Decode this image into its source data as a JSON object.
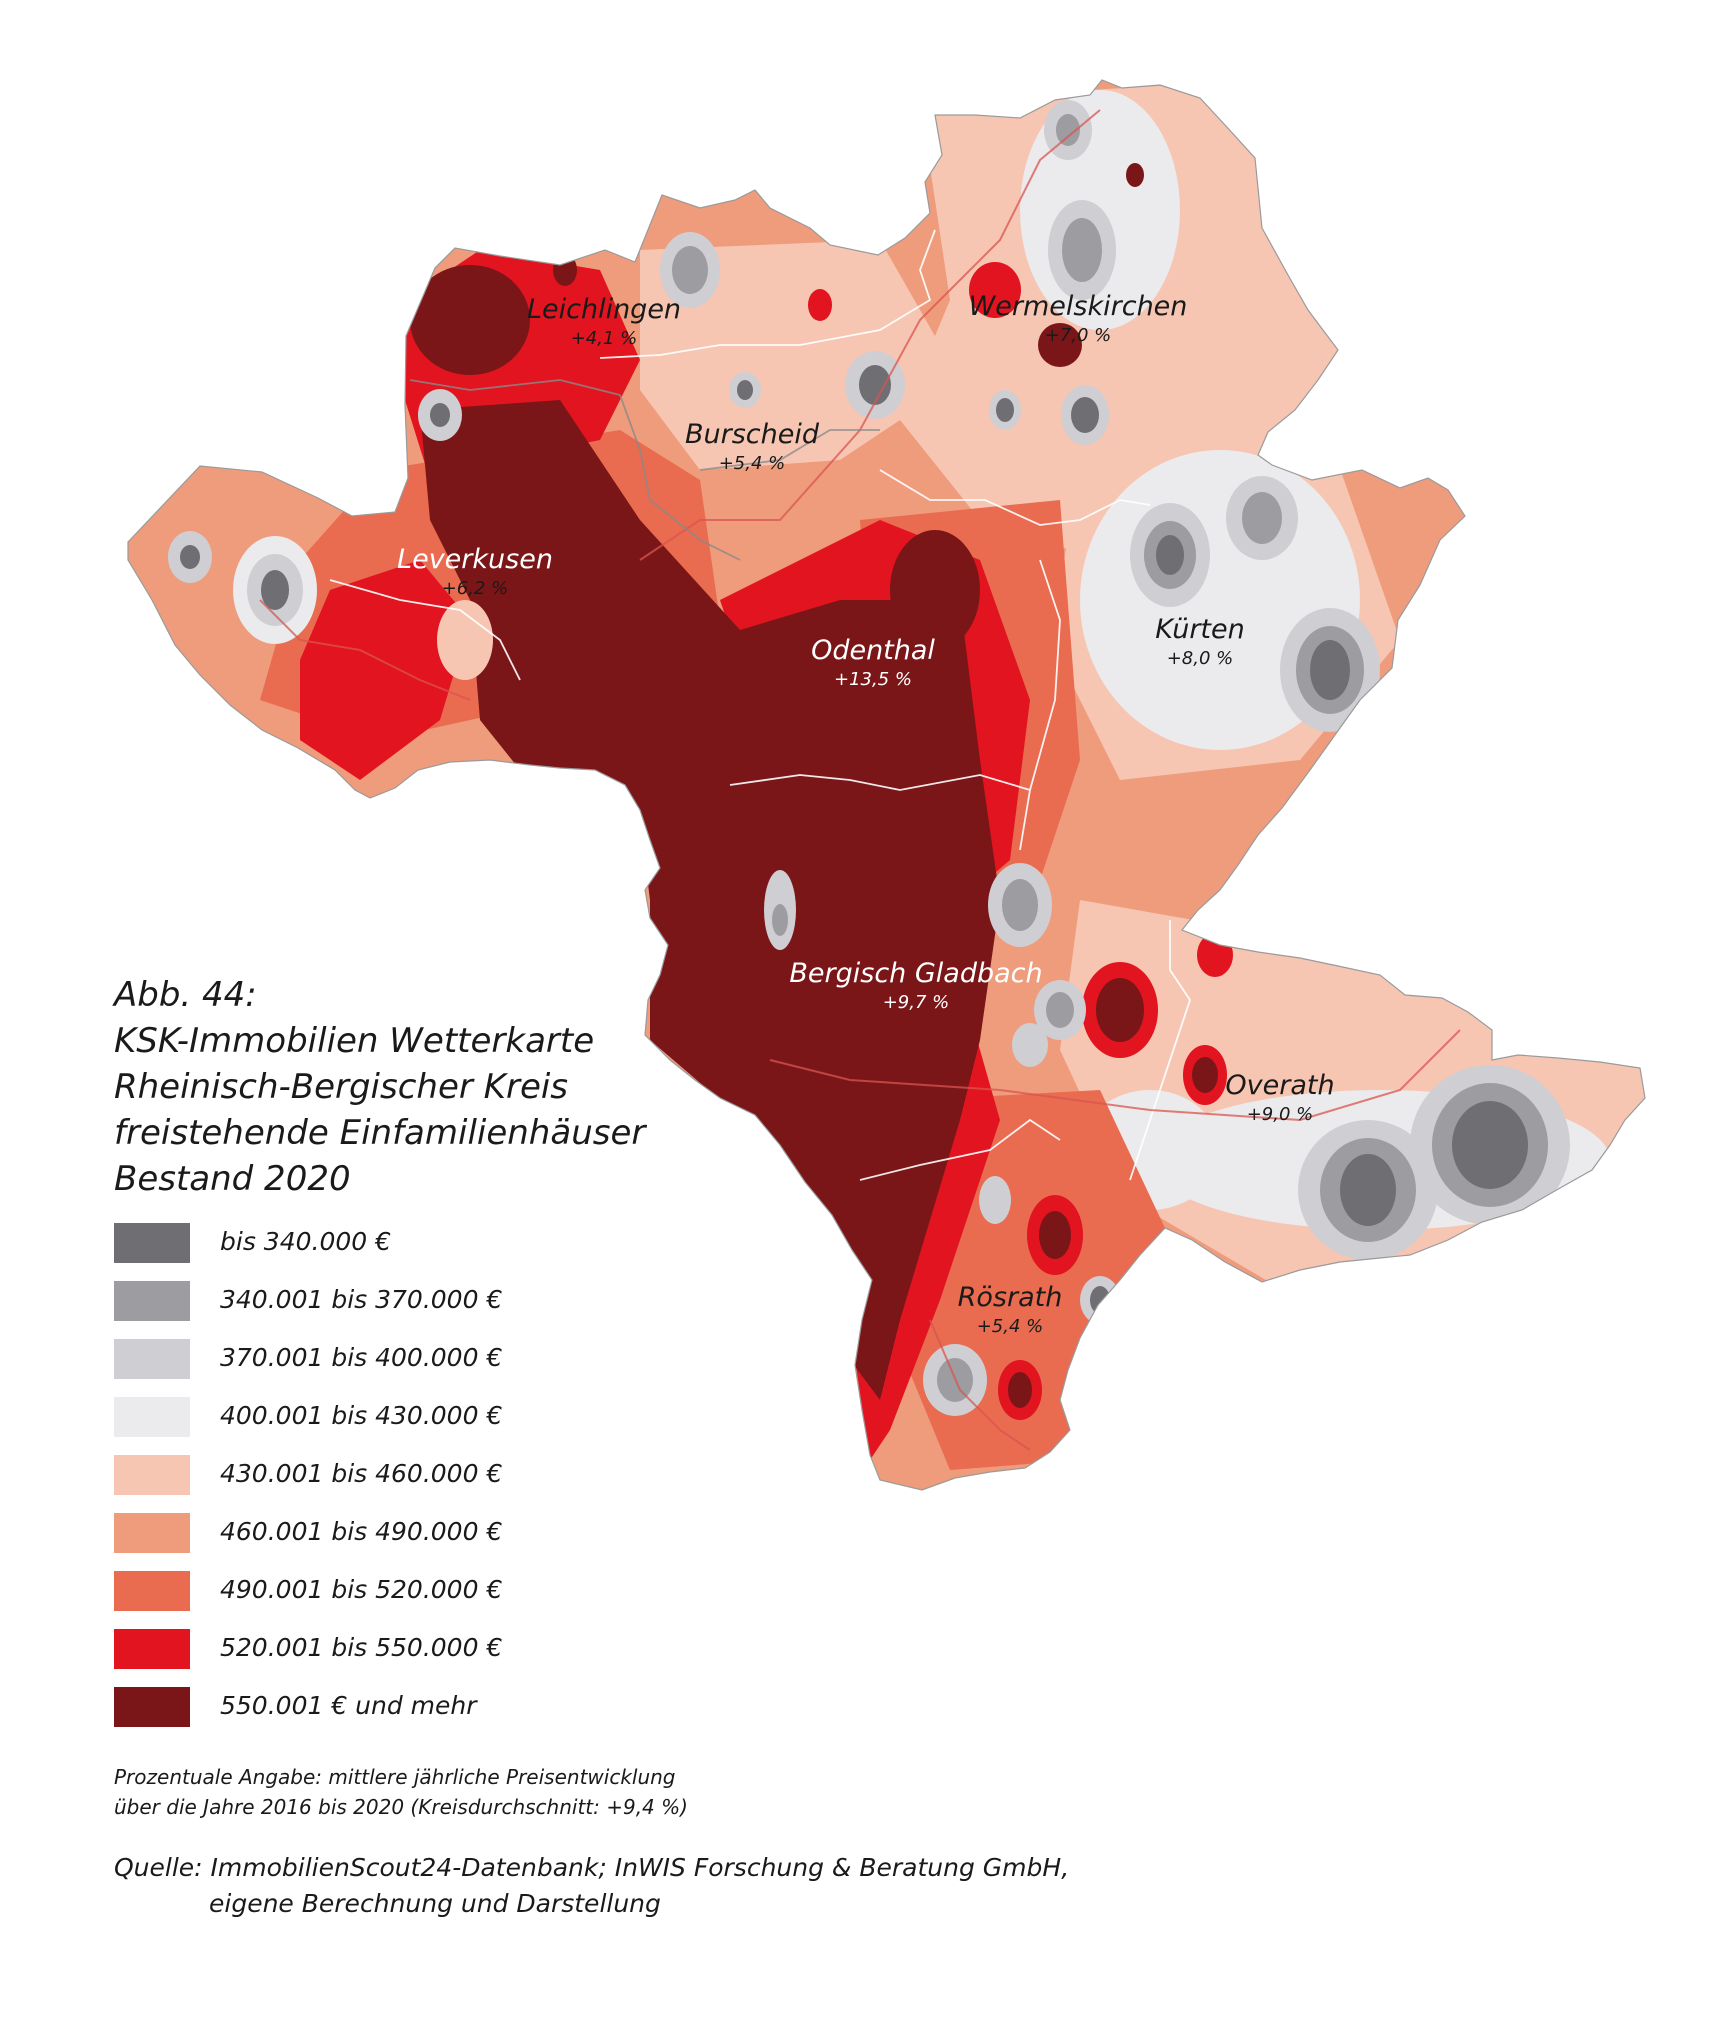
{
  "title_lines": [
    "Abb. 44:",
    "KSK-Immobilien Wetterkarte",
    "Rheinisch-Bergischer Kreis",
    "freistehende Einfamilienhäuser",
    "Bestand 2020"
  ],
  "legend": [
    {
      "label": "bis 340.000 €",
      "color": "#6f6e73"
    },
    {
      "label": "340.001 bis 370.000 €",
      "color": "#9d9ca1"
    },
    {
      "label": "370.001 bis 400.000 €",
      "color": "#cfced2"
    },
    {
      "label": "400.001 bis 430.000 €",
      "color": "#ebeaec"
    },
    {
      "label": "430.001 bis 460.000 €",
      "color": "#f6c6b3"
    },
    {
      "label": "460.001 bis 490.000 €",
      "color": "#ef9c7c"
    },
    {
      "label": "490.001 bis 520.000 €",
      "color": "#e96b50"
    },
    {
      "label": "520.001 bis 550.000 €",
      "color": "#e1141f"
    },
    {
      "label": "550.001 € und mehr",
      "color": "#7b1618"
    }
  ],
  "towns": [
    {
      "name": "Leichlingen",
      "change": "+4,1 %"
    },
    {
      "name": "Wermelskirchen",
      "change": "+7,0 %"
    },
    {
      "name": "Burscheid",
      "change": "+5,4 %"
    },
    {
      "name": "Leverkusen",
      "change": "+6,2 %"
    },
    {
      "name": "Odenthal",
      "change": "+13,5 %"
    },
    {
      "name": "Kürten",
      "change": "+8,0 %"
    },
    {
      "name": "Bergisch Gladbach",
      "change": "+9,7 %"
    },
    {
      "name": "Overath",
      "change": "+9,0 %"
    },
    {
      "name": "Rösrath",
      "change": "+5,4 %"
    }
  ],
  "note_lines": [
    "Prozentuale Angabe: mittlere jährliche Preisentwicklung",
    "über die Jahre 2016 bis 2020 (Kreisdurchschnitt: +9,4 %)"
  ],
  "source_lines": [
    "Quelle: ImmobilienScout24-Datenbank; InWIS Forschung & Beratung GmbH,",
    "eigene Berechnung und Darstellung"
  ]
}
